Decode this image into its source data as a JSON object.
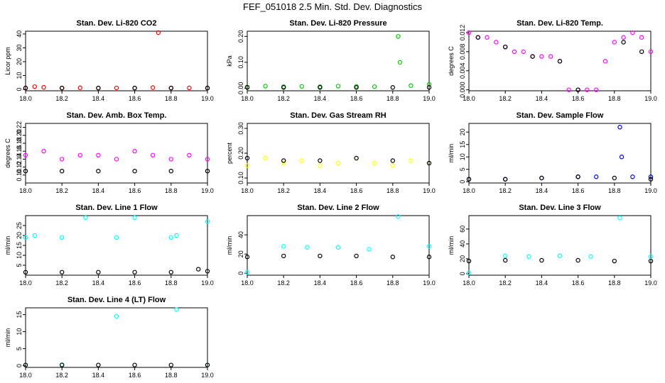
{
  "title": "FEF_051018  2.5 Min. Std. Dev. Diagnostics",
  "chart_data": [
    {
      "type": "scatter",
      "title": "Stan. Dev. Li-820 CO2",
      "ylabel": "Licor ppm",
      "xlim": [
        18.0,
        19.0
      ],
      "ylim": [
        -1,
        42
      ],
      "x_ticks": [
        "18.0",
        "18.2",
        "18.4",
        "18.6",
        "18.8",
        "19.0"
      ],
      "y_ticks": [
        "0",
        "10",
        "20",
        "30",
        "40"
      ],
      "y_tick_values": [
        0,
        10,
        20,
        30,
        40
      ],
      "series": [
        {
          "name": "open",
          "color": "#ff0000",
          "x": [
            18.0,
            18.05,
            18.1,
            18.2,
            18.3,
            18.4,
            18.5,
            18.6,
            18.7,
            18.73,
            18.8,
            18.9,
            19.0
          ],
          "y": [
            1,
            2,
            1.5,
            1,
            1.2,
            1,
            1.1,
            1,
            1.3,
            41,
            1,
            1.1,
            1
          ]
        },
        {
          "name": "closed",
          "color": "#000000",
          "x": [
            18.0,
            18.2,
            18.4,
            18.6,
            18.8,
            19.0
          ],
          "y": [
            1,
            1,
            1,
            1,
            1,
            1
          ]
        }
      ]
    },
    {
      "type": "scatter",
      "title": "Stan. Dev. Li-820 Pressure",
      "ylabel": "kPa",
      "xlim": [
        18.0,
        19.0
      ],
      "ylim": [
        -0.01,
        0.22
      ],
      "x_ticks": [
        "18.0",
        "18.2",
        "18.4",
        "18.6",
        "18.8",
        "19.0"
      ],
      "y_ticks": [
        "0.00",
        "0.10",
        "0.20"
      ],
      "y_tick_values": [
        0,
        0.1,
        0.2
      ],
      "series": [
        {
          "name": "open",
          "color": "#00cc00",
          "x": [
            18.0,
            18.1,
            18.2,
            18.3,
            18.4,
            18.5,
            18.6,
            18.7,
            18.83,
            18.84,
            18.9,
            19.0
          ],
          "y": [
            0.005,
            0.008,
            0.006,
            0.007,
            0.006,
            0.008,
            0.007,
            0.006,
            0.2,
            0.1,
            0.01,
            0.015
          ]
        },
        {
          "name": "closed",
          "color": "#000000",
          "x": [
            18.0,
            18.2,
            18.4,
            18.6,
            18.8,
            19.0
          ],
          "y": [
            0.003,
            0.003,
            0.003,
            0.003,
            0.003,
            0.003
          ]
        }
      ]
    },
    {
      "type": "scatter",
      "title": "Stan. Dev. Li-820 Temp.",
      "ylabel": "degrees C",
      "xlim": [
        18.0,
        19.0
      ],
      "ylim": [
        -0.0002,
        0.0123
      ],
      "x_ticks": [
        "18.0",
        "18.2",
        "18.4",
        "18.6",
        "18.8",
        "19.0"
      ],
      "y_ticks": [
        "0.000",
        "0.004",
        "0.008",
        "0.012"
      ],
      "y_tick_values": [
        0,
        0.004,
        0.008,
        0.012
      ],
      "series": [
        {
          "name": "open",
          "color": "#ff00ff",
          "x": [
            18.0,
            18.05,
            18.1,
            18.15,
            18.2,
            18.25,
            18.3,
            18.35,
            18.4,
            18.45,
            18.5,
            18.55,
            18.6,
            18.65,
            18.7,
            18.75,
            18.8,
            18.85,
            18.9,
            18.95,
            19.0
          ],
          "y": [
            0.012,
            0.011,
            0.011,
            0.01,
            0.009,
            0.008,
            0.008,
            0.007,
            0.007,
            0.007,
            0.006,
            0.0,
            0.0,
            0.0,
            0.0,
            0.006,
            0.01,
            0.011,
            0.012,
            0.011,
            0.008
          ]
        },
        {
          "name": "closed",
          "color": "#000000",
          "x": [
            18.05,
            18.2,
            18.35,
            18.5,
            18.6,
            18.85,
            18.95
          ],
          "y": [
            0.011,
            0.009,
            0.007,
            0.006,
            0.0,
            0.01,
            0.008
          ]
        }
      ]
    },
    {
      "type": "scatter",
      "title": "Stan. Dev. Amb. Box Temp.",
      "ylabel": "degrees C",
      "xlim": [
        18.0,
        19.0
      ],
      "ylim": [
        0.08,
        0.23
      ],
      "x_ticks": [
        "18.0",
        "18.2",
        "18.4",
        "18.6",
        "18.8",
        "19.0"
      ],
      "y_ticks": [
        "0.10",
        "0.12",
        "0.14",
        "0.16",
        "0.18",
        "0.20",
        "0.22"
      ],
      "y_tick_values": [
        0.1,
        0.12,
        0.14,
        0.16,
        0.18,
        0.2,
        0.22
      ],
      "series": [
        {
          "name": "open",
          "color": "#ff00ff",
          "x": [
            18.0,
            18.1,
            18.2,
            18.3,
            18.4,
            18.5,
            18.6,
            18.7,
            18.8,
            18.9,
            19.0
          ],
          "y": [
            0.15,
            0.16,
            0.14,
            0.15,
            0.15,
            0.14,
            0.16,
            0.15,
            0.14,
            0.15,
            0.14
          ]
        },
        {
          "name": "closed",
          "color": "#000000",
          "x": [
            18.0,
            18.2,
            18.4,
            18.6,
            18.8,
            19.0
          ],
          "y": [
            0.11,
            0.11,
            0.11,
            0.11,
            0.11,
            0.11
          ]
        }
      ]
    },
    {
      "type": "scatter",
      "title": "Stan. Dev. Gas Stream RH",
      "ylabel": "percent",
      "xlim": [
        18.0,
        19.0
      ],
      "ylim": [
        0.08,
        0.32
      ],
      "x_ticks": [
        "18.0",
        "18.2",
        "18.4",
        "18.6",
        "18.8",
        "19.0"
      ],
      "y_ticks": [
        "0.10",
        "0.20",
        "0.30"
      ],
      "y_tick_values": [
        0.1,
        0.2,
        0.3
      ],
      "series": [
        {
          "name": "open",
          "color": "#ffff00",
          "x": [
            18.0,
            18.1,
            18.2,
            18.3,
            18.4,
            18.5,
            18.6,
            18.7,
            18.8,
            18.9,
            19.0
          ],
          "y": [
            0.15,
            0.18,
            0.16,
            0.17,
            0.15,
            0.16,
            0.18,
            0.16,
            0.15,
            0.17,
            0.16
          ]
        },
        {
          "name": "closed",
          "color": "#000000",
          "x": [
            18.0,
            18.2,
            18.4,
            18.6,
            18.8,
            19.0
          ],
          "y": [
            0.18,
            0.17,
            0.17,
            0.18,
            0.17,
            0.16
          ]
        }
      ]
    },
    {
      "type": "scatter",
      "title": "Stan. Dev. Sample Flow",
      "ylabel": "ml/min",
      "xlim": [
        18.0,
        19.0
      ],
      "ylim": [
        -0.5,
        23.5
      ],
      "x_ticks": [
        "18.0",
        "18.2",
        "18.4",
        "18.6",
        "18.8",
        "19.0"
      ],
      "y_ticks": [
        "0",
        "5",
        "10",
        "15",
        "20"
      ],
      "y_tick_values": [
        0,
        5,
        10,
        15,
        20
      ],
      "series": [
        {
          "name": "open",
          "color": "#0000ff",
          "x": [
            18.0,
            18.2,
            18.4,
            18.6,
            18.7,
            18.83,
            18.84,
            18.9,
            19.0
          ],
          "y": [
            1,
            1,
            1.5,
            2,
            2,
            22,
            10,
            2,
            2
          ]
        },
        {
          "name": "closed",
          "color": "#000000",
          "x": [
            18.0,
            18.2,
            18.4,
            18.6,
            18.8,
            19.0
          ],
          "y": [
            1,
            1,
            1.5,
            2,
            1.5,
            1
          ]
        }
      ]
    },
    {
      "type": "scatter",
      "title": "Stan. Dev. Line 1 Flow",
      "ylabel": "ml/min",
      "xlim": [
        18.0,
        19.0
      ],
      "ylim": [
        0,
        30
      ],
      "x_ticks": [
        "18.0",
        "18.2",
        "18.4",
        "18.6",
        "18.8",
        "19.0"
      ],
      "y_ticks": [
        "5",
        "10",
        "15",
        "20",
        "25"
      ],
      "y_tick_values": [
        5,
        10,
        15,
        20,
        25
      ],
      "series": [
        {
          "name": "open",
          "color": "#00ffff",
          "x": [
            18.0,
            18.05,
            18.2,
            18.33,
            18.5,
            18.6,
            18.8,
            18.83,
            19.0
          ],
          "y": [
            19,
            20,
            19,
            29,
            19,
            29,
            19,
            20,
            27
          ]
        },
        {
          "name": "closed",
          "color": "#000000",
          "x": [
            18.0,
            18.2,
            18.4,
            18.6,
            18.8,
            18.95,
            19.0
          ],
          "y": [
            1.5,
            1.5,
            1.5,
            1.5,
            1.5,
            3,
            2
          ]
        }
      ]
    },
    {
      "type": "scatter",
      "title": "Stan. Dev. Line 2 Flow",
      "ylabel": "ml/min",
      "xlim": [
        18.0,
        19.0
      ],
      "ylim": [
        -2,
        60
      ],
      "x_ticks": [
        "18.0",
        "18.2",
        "18.4",
        "18.6",
        "18.8",
        "19.0"
      ],
      "y_ticks": [
        "0",
        "20",
        "40"
      ],
      "y_tick_values": [
        0,
        20,
        40
      ],
      "series": [
        {
          "name": "open",
          "color": "#00ffff",
          "x": [
            18.0,
            18.2,
            18.33,
            18.5,
            18.67,
            18.83,
            19.0
          ],
          "y": [
            1,
            28,
            27,
            27,
            25,
            59,
            28
          ]
        },
        {
          "name": "closed",
          "color": "#000000",
          "x": [
            18.0,
            18.2,
            18.4,
            18.6,
            18.8,
            19.0
          ],
          "y": [
            17,
            18,
            18,
            18,
            17,
            17
          ]
        }
      ]
    },
    {
      "type": "scatter",
      "title": "Stan. Dev. Line 3 Flow",
      "ylabel": "ml/min",
      "xlim": [
        18.0,
        19.0
      ],
      "ylim": [
        -2,
        78
      ],
      "x_ticks": [
        "18.0",
        "18.2",
        "18.4",
        "18.6",
        "18.8",
        "19.0"
      ],
      "y_ticks": [
        "0",
        "20",
        "40",
        "60"
      ],
      "y_tick_values": [
        0,
        20,
        40,
        60
      ],
      "series": [
        {
          "name": "open",
          "color": "#00ffff",
          "x": [
            18.0,
            18.2,
            18.33,
            18.5,
            18.67,
            18.83,
            19.0
          ],
          "y": [
            1,
            24,
            23,
            24,
            23,
            75,
            23
          ]
        },
        {
          "name": "closed",
          "color": "#000000",
          "x": [
            18.0,
            18.2,
            18.4,
            18.6,
            18.8,
            19.0
          ],
          "y": [
            17,
            18,
            18,
            18,
            17,
            17
          ]
        }
      ]
    },
    {
      "type": "scatter",
      "title": "Stan. Dev. Line 4 (LT) Flow",
      "ylabel": "ml/min",
      "xlim": [
        18.0,
        19.0
      ],
      "ylim": [
        -0.5,
        17
      ],
      "x_ticks": [
        "18.0",
        "18.2",
        "18.4",
        "18.6",
        "18.8",
        "19.0"
      ],
      "y_ticks": [
        "0",
        "5",
        "10",
        "15"
      ],
      "y_tick_values": [
        0,
        5,
        10,
        15
      ],
      "series": [
        {
          "name": "open",
          "color": "#00ffff",
          "x": [
            18.0,
            18.2,
            18.5,
            18.83,
            19.0
          ],
          "y": [
            0.2,
            0.3,
            14.5,
            16.5,
            0.2
          ]
        },
        {
          "name": "closed",
          "color": "#000000",
          "x": [
            18.0,
            18.2,
            18.4,
            18.6,
            18.8,
            19.0
          ],
          "y": [
            0.2,
            0.2,
            0.2,
            0.2,
            0.2,
            0.2
          ]
        }
      ]
    }
  ]
}
